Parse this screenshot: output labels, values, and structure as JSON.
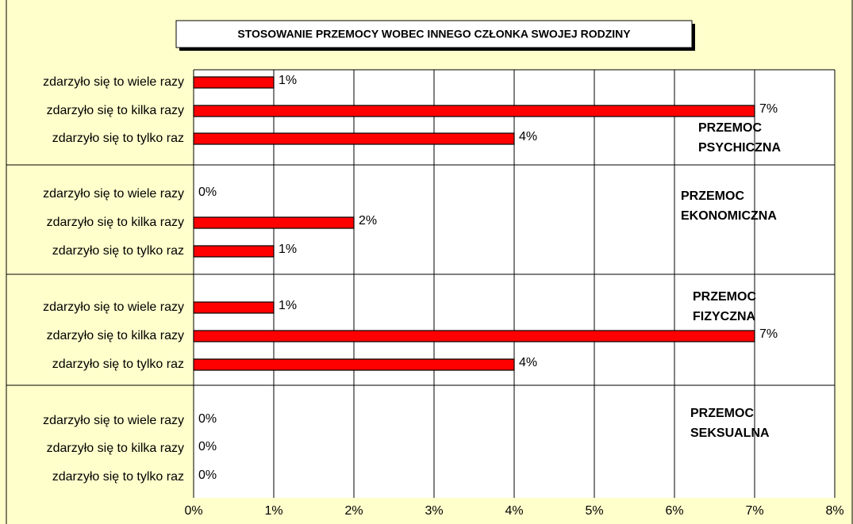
{
  "chart_data": {
    "type": "grouped-bar-horizontal",
    "title": "STOSOWANIE PRZEMOCY WOBEC INNEGO CZŁONKA SWOJEJ RODZINY",
    "xlim": [
      0,
      8
    ],
    "xticks": [
      {
        "value": 0,
        "label": "0%"
      },
      {
        "value": 1,
        "label": "1%"
      },
      {
        "value": 2,
        "label": "2%"
      },
      {
        "value": 3,
        "label": "3%"
      },
      {
        "value": 4,
        "label": "4%"
      },
      {
        "value": 5,
        "label": "5%"
      },
      {
        "value": 6,
        "label": "6%"
      },
      {
        "value": 7,
        "label": "7%"
      },
      {
        "value": 8,
        "label": "8%"
      }
    ],
    "grid": true,
    "color": "#ff0000",
    "groups": [
      {
        "label_lines": [
          "PRZEMOC",
          "PSYCHICZNA"
        ],
        "categories": [
          "zdarzyło się to wiele razy",
          "zdarzyło się to kilka razy",
          "zdarzyło się to tylko raz"
        ],
        "values": [
          1,
          7,
          4
        ],
        "value_labels": [
          "1%",
          "7%",
          "4%"
        ]
      },
      {
        "label_lines": [
          "PRZEMOC",
          "EKONOMICZNA"
        ],
        "categories": [
          "zdarzyło się to wiele razy",
          "zdarzyło się to kilka razy",
          "zdarzyło się to tylko raz"
        ],
        "values": [
          0,
          2,
          1
        ],
        "value_labels": [
          "0%",
          "2%",
          "1%"
        ]
      },
      {
        "label_lines": [
          "PRZEMOC",
          "FIZYCZNA"
        ],
        "categories": [
          "zdarzyło się to wiele razy",
          "zdarzyło się to kilka razy",
          "zdarzyło się to tylko raz"
        ],
        "values": [
          1,
          7,
          4
        ],
        "value_labels": [
          "1%",
          "7%",
          "4%"
        ]
      },
      {
        "label_lines": [
          "PRZEMOC",
          "SEKSUALNA"
        ],
        "categories": [
          "zdarzyło się to wiele razy",
          "zdarzyło się to kilka razy",
          "zdarzyło się to tylko raz"
        ],
        "values": [
          0,
          0,
          0
        ],
        "value_labels": [
          "0%",
          "0%",
          "0%"
        ]
      }
    ]
  }
}
